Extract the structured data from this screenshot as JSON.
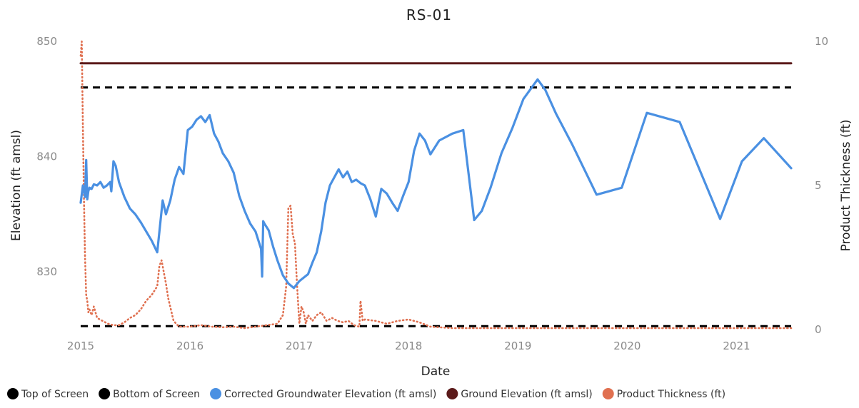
{
  "chart_data": {
    "type": "line",
    "title": "RS-01",
    "xlabel": "Date",
    "ylabel": "Elevation (ft amsl)",
    "y2label": "Product Thickness (ft)",
    "xlim": [
      2015.0,
      2021.5
    ],
    "ylim": [
      825,
      850
    ],
    "y2lim": [
      0,
      10
    ],
    "x_ticks": [
      "2015",
      "2016",
      "2017",
      "2018",
      "2019",
      "2020",
      "2021"
    ],
    "y_ticks": [
      "830",
      "840",
      "850"
    ],
    "y2_ticks": [
      "0",
      "5",
      "10"
    ],
    "grid": false,
    "legend_position": "bottom",
    "series": [
      {
        "name": "Top of Screen",
        "axis": "left",
        "style": "dashed",
        "color": "#000000",
        "x": [
          2015.0,
          2021.5
        ],
        "y": [
          846.0,
          846.0
        ]
      },
      {
        "name": "Bottom of Screen",
        "axis": "left",
        "style": "dashed",
        "color": "#000000",
        "x": [
          2015.0,
          2021.5
        ],
        "y": [
          825.3,
          825.3
        ]
      },
      {
        "name": "Corrected Groundwater Elevation (ft amsl)",
        "axis": "left",
        "style": "solid",
        "color": "#4A90E2",
        "x": [
          2015.0,
          2015.02,
          2015.04,
          2015.05,
          2015.06,
          2015.07,
          2015.08,
          2015.1,
          2015.12,
          2015.15,
          2015.18,
          2015.21,
          2015.24,
          2015.27,
          2015.28,
          2015.3,
          2015.32,
          2015.35,
          2015.4,
          2015.45,
          2015.5,
          2015.55,
          2015.6,
          2015.65,
          2015.7,
          2015.75,
          2015.78,
          2015.82,
          2015.86,
          2015.9,
          2015.94,
          2015.98,
          2016.02,
          2016.06,
          2016.1,
          2016.14,
          2016.18,
          2016.22,
          2016.26,
          2016.3,
          2016.35,
          2016.4,
          2016.45,
          2016.5,
          2016.55,
          2016.6,
          2016.65,
          2016.66,
          2016.67,
          2016.68,
          2016.72,
          2016.76,
          2016.8,
          2016.85,
          2016.9,
          2016.95,
          2017.0,
          2017.04,
          2017.08,
          2017.12,
          2017.16,
          2017.2,
          2017.24,
          2017.28,
          2017.32,
          2017.36,
          2017.4,
          2017.44,
          2017.48,
          2017.52,
          2017.56,
          2017.6,
          2017.65,
          2017.7,
          2017.75,
          2017.8,
          2017.85,
          2017.9,
          2017.95,
          2018.0,
          2018.05,
          2018.1,
          2018.15,
          2018.2,
          2018.28,
          2018.4,
          2018.5,
          2018.6,
          2018.67,
          2018.75,
          2018.85,
          2018.95,
          2019.05,
          2019.18,
          2019.25,
          2019.35,
          2019.5,
          2019.72,
          2019.95,
          2020.18,
          2020.48,
          2020.85,
          2021.05,
          2021.25,
          2021.5
        ],
        "y": [
          836.0,
          837.5,
          836.5,
          839.7,
          836.3,
          837.0,
          837.3,
          837.2,
          837.6,
          837.5,
          837.8,
          837.3,
          837.5,
          837.8,
          837.0,
          839.6,
          839.2,
          837.8,
          836.5,
          835.5,
          835.0,
          834.3,
          833.5,
          832.7,
          831.7,
          836.2,
          835.0,
          836.2,
          838.0,
          839.1,
          838.5,
          842.3,
          842.6,
          843.2,
          843.5,
          843.0,
          843.6,
          842.0,
          841.3,
          840.3,
          839.6,
          838.6,
          836.6,
          835.3,
          834.2,
          833.5,
          832.0,
          829.6,
          834.4,
          834.2,
          833.6,
          832.2,
          831.0,
          829.7,
          829.0,
          828.6,
          829.2,
          829.5,
          829.8,
          830.8,
          831.7,
          833.5,
          836.0,
          837.5,
          838.2,
          838.9,
          838.2,
          838.7,
          837.8,
          838.0,
          837.7,
          837.5,
          836.3,
          834.8,
          837.2,
          836.8,
          836.0,
          835.3,
          836.6,
          837.8,
          840.5,
          842.0,
          841.4,
          840.2,
          841.4,
          842.0,
          842.3,
          834.5,
          835.3,
          837.3,
          840.3,
          842.5,
          845.0,
          846.7,
          845.8,
          843.7,
          841.0,
          836.7,
          837.3,
          843.8,
          843.0,
          834.6,
          839.6,
          841.6,
          839.0
        ]
      },
      {
        "name": "Ground Elevation (ft amsl)",
        "axis": "left",
        "style": "solid",
        "color": "#5B1A1A",
        "x": [
          2015.0,
          2021.5
        ],
        "y": [
          848.1,
          848.1
        ]
      },
      {
        "name": "Product Thickness (ft)",
        "axis": "right",
        "style": "dotted",
        "color": "#E07050",
        "x": [
          2015.0,
          2015.01,
          2015.02,
          2015.03,
          2015.04,
          2015.05,
          2015.06,
          2015.07,
          2015.08,
          2015.1,
          2015.12,
          2015.15,
          2015.2,
          2015.25,
          2015.3,
          2015.35,
          2015.4,
          2015.45,
          2015.5,
          2015.55,
          2015.6,
          2015.65,
          2015.7,
          2015.72,
          2015.74,
          2015.76,
          2015.78,
          2015.8,
          2015.85,
          2015.9,
          2016.0,
          2016.1,
          2016.2,
          2016.3,
          2016.4,
          2016.5,
          2016.6,
          2016.7,
          2016.8,
          2016.85,
          2016.88,
          2016.9,
          2016.92,
          2016.94,
          2016.96,
          2016.98,
          2017.0,
          2017.02,
          2017.04,
          2017.06,
          2017.08,
          2017.12,
          2017.16,
          2017.2,
          2017.25,
          2017.3,
          2017.35,
          2017.4,
          2017.45,
          2017.5,
          2017.55,
          2017.56,
          2017.58,
          2017.6,
          2017.7,
          2017.8,
          2017.9,
          2018.0,
          2018.1,
          2018.2,
          2018.4,
          2018.6,
          2018.8,
          2019.0,
          2019.5,
          2020.0,
          2020.5,
          2021.0,
          2021.5
        ],
        "y": [
          9.5,
          10.0,
          7.0,
          4.5,
          2.5,
          1.2,
          1.0,
          0.6,
          0.7,
          0.5,
          0.8,
          0.4,
          0.3,
          0.2,
          0.15,
          0.15,
          0.25,
          0.4,
          0.5,
          0.7,
          1.0,
          1.2,
          1.5,
          2.2,
          2.4,
          2.0,
          1.6,
          1.1,
          0.3,
          0.1,
          0.1,
          0.15,
          0.1,
          0.08,
          0.1,
          0.05,
          0.1,
          0.15,
          0.2,
          0.5,
          1.5,
          4.2,
          4.3,
          3.3,
          3.0,
          1.5,
          0.2,
          0.8,
          0.6,
          0.2,
          0.5,
          0.3,
          0.5,
          0.6,
          0.3,
          0.4,
          0.3,
          0.25,
          0.3,
          0.15,
          0.1,
          1.0,
          0.3,
          0.35,
          0.3,
          0.2,
          0.3,
          0.35,
          0.25,
          0.1,
          0.05,
          0.05,
          0.05,
          0.05,
          0.05,
          0.05,
          0.05,
          0.05,
          0.05
        ]
      }
    ]
  },
  "legend": [
    {
      "label": "Top of Screen",
      "color": "#000000"
    },
    {
      "label": "Bottom of Screen",
      "color": "#000000"
    },
    {
      "label": "Corrected Groundwater Elevation (ft amsl)",
      "color": "#4A90E2"
    },
    {
      "label": "Ground Elevation (ft amsl)",
      "color": "#5B1A1A"
    },
    {
      "label": "Product Thickness (ft)",
      "color": "#E07050"
    }
  ]
}
